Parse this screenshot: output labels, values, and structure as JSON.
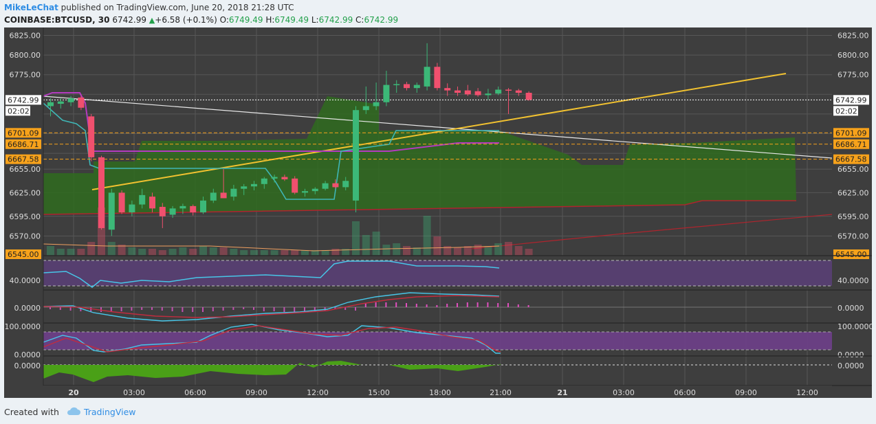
{
  "header": {
    "author": "MikeLeChat",
    "published_text": "published on TradingView.com, June 20, 2018 21:28 UTC",
    "symbol": "COINBASE:BTCUSD, 30",
    "last": "6742.99",
    "change_arrow": "▲",
    "change": "+6.58 (+0.1%)",
    "open_label": "O:",
    "open": "6749.49",
    "high_label": "H:",
    "high": "6749.49",
    "low_label": "L:",
    "low": "6742.99",
    "close_label": "C:",
    "close": "6742.99"
  },
  "price_axis": {
    "ticks": [
      "6825.00",
      "6800.00",
      "6775.00",
      "6655.00",
      "6625.00",
      "6595.00",
      "6570.00"
    ],
    "labels_left": [
      {
        "text": "6742.99",
        "kind": "last"
      },
      {
        "text": "02:02",
        "kind": "countdown"
      },
      {
        "text": "6701.09",
        "kind": "level"
      },
      {
        "text": "6686.71",
        "kind": "level"
      },
      {
        "text": "6667.58",
        "kind": "level"
      },
      {
        "text": "6545.00",
        "kind": "level"
      }
    ],
    "labels_right": [
      {
        "text": "6742.99",
        "kind": "last"
      },
      {
        "text": "02:02",
        "kind": "countdown"
      },
      {
        "text": "6701.09",
        "kind": "level"
      },
      {
        "text": "6686.71",
        "kind": "level"
      },
      {
        "text": "6667.58",
        "kind": "level"
      },
      {
        "text": "6545.00",
        "kind": "level"
      }
    ]
  },
  "indicator_axis": {
    "rsi_label": "40.0000",
    "macd_label": "0.0000",
    "stoch_top": "100.0000",
    "stoch_bottom": "0.0000",
    "osc_label": "0.0000",
    "rsi_left": "40.0000",
    "macd_left": "0.0000",
    "stoch_left_top": "100.0000",
    "stoch_left_bottom": "0.0000",
    "osc_left": "0.0000"
  },
  "time_axis": [
    "20",
    "03:00",
    "06:00",
    "09:00",
    "12:00",
    "15:00",
    "18:00",
    "21:00",
    "21",
    "03:00",
    "06:00",
    "09:00",
    "12:00"
  ],
  "time_axis_bold": [
    true,
    false,
    false,
    false,
    false,
    false,
    false,
    false,
    true,
    false,
    false,
    false,
    false
  ],
  "footer": {
    "created_with": "Created with",
    "brand": "TradingView"
  },
  "colors": {
    "up": "#3cb878",
    "down": "#f0506e",
    "level_line": "#f7a21b",
    "trend_yellow": "#f2c230",
    "cloud": "#2f6b1f",
    "rsi_band": "#5b3f78",
    "stoch_band": "#6e3f8a",
    "osc_fill": "#4aa017"
  },
  "chart_data": {
    "type": "candlestick",
    "symbol": "COINBASE:BTCUSD",
    "interval": "30",
    "ylim": [
      6545,
      6835
    ],
    "candles": [
      {
        "o": 6735,
        "h": 6745,
        "l": 6722,
        "c": 6740
      },
      {
        "o": 6738,
        "h": 6745,
        "l": 6732,
        "c": 6741
      },
      {
        "o": 6740,
        "h": 6748,
        "l": 6735,
        "c": 6745
      },
      {
        "o": 6746,
        "h": 6748,
        "l": 6730,
        "c": 6733
      },
      {
        "o": 6722,
        "h": 6725,
        "l": 6665,
        "c": 6670
      },
      {
        "o": 6670,
        "h": 6672,
        "l": 6578,
        "c": 6580
      },
      {
        "o": 6578,
        "h": 6630,
        "l": 6570,
        "c": 6625
      },
      {
        "o": 6625,
        "h": 6628,
        "l": 6598,
        "c": 6600
      },
      {
        "o": 6600,
        "h": 6615,
        "l": 6595,
        "c": 6610
      },
      {
        "o": 6610,
        "h": 6630,
        "l": 6605,
        "c": 6622
      },
      {
        "o": 6620,
        "h": 6625,
        "l": 6600,
        "c": 6605
      },
      {
        "o": 6607,
        "h": 6612,
        "l": 6580,
        "c": 6595
      },
      {
        "o": 6597,
        "h": 6608,
        "l": 6593,
        "c": 6605
      },
      {
        "o": 6605,
        "h": 6611,
        "l": 6598,
        "c": 6608
      },
      {
        "o": 6608,
        "h": 6610,
        "l": 6596,
        "c": 6600
      },
      {
        "o": 6600,
        "h": 6620,
        "l": 6598,
        "c": 6615
      },
      {
        "o": 6615,
        "h": 6630,
        "l": 6612,
        "c": 6625
      },
      {
        "o": 6625,
        "h": 6655,
        "l": 6620,
        "c": 6618
      },
      {
        "o": 6620,
        "h": 6635,
        "l": 6615,
        "c": 6630
      },
      {
        "o": 6630,
        "h": 6636,
        "l": 6622,
        "c": 6633
      },
      {
        "o": 6633,
        "h": 6640,
        "l": 6628,
        "c": 6636
      },
      {
        "o": 6636,
        "h": 6645,
        "l": 6630,
        "c": 6643
      },
      {
        "o": 6643,
        "h": 6648,
        "l": 6638,
        "c": 6645
      },
      {
        "o": 6645,
        "h": 6648,
        "l": 6640,
        "c": 6642
      },
      {
        "o": 6643,
        "h": 6646,
        "l": 6623,
        "c": 6625
      },
      {
        "o": 6625,
        "h": 6630,
        "l": 6620,
        "c": 6627
      },
      {
        "o": 6627,
        "h": 6632,
        "l": 6623,
        "c": 6630
      },
      {
        "o": 6630,
        "h": 6640,
        "l": 6628,
        "c": 6637
      },
      {
        "o": 6637,
        "h": 6642,
        "l": 6630,
        "c": 6632
      },
      {
        "o": 6632,
        "h": 6645,
        "l": 6628,
        "c": 6640
      },
      {
        "o": 6615,
        "h": 6735,
        "l": 6600,
        "c": 6730
      },
      {
        "o": 6730,
        "h": 6760,
        "l": 6725,
        "c": 6735
      },
      {
        "o": 6735,
        "h": 6765,
        "l": 6730,
        "c": 6740
      },
      {
        "o": 6740,
        "h": 6780,
        "l": 6735,
        "c": 6762
      },
      {
        "o": 6762,
        "h": 6768,
        "l": 6752,
        "c": 6763
      },
      {
        "o": 6763,
        "h": 6766,
        "l": 6755,
        "c": 6758
      },
      {
        "o": 6758,
        "h": 6765,
        "l": 6752,
        "c": 6762
      },
      {
        "o": 6760,
        "h": 6815,
        "l": 6755,
        "c": 6785
      },
      {
        "o": 6785,
        "h": 6790,
        "l": 6755,
        "c": 6758
      },
      {
        "o": 6758,
        "h": 6764,
        "l": 6748,
        "c": 6755
      },
      {
        "o": 6755,
        "h": 6760,
        "l": 6748,
        "c": 6752
      },
      {
        "o": 6755,
        "h": 6762,
        "l": 6748,
        "c": 6750
      },
      {
        "o": 6754,
        "h": 6758,
        "l": 6747,
        "c": 6749
      },
      {
        "o": 6749,
        "h": 6757,
        "l": 6743,
        "c": 6751
      },
      {
        "o": 6751,
        "h": 6760,
        "l": 6749,
        "c": 6756
      },
      {
        "o": 6756,
        "h": 6758,
        "l": 6725,
        "c": 6755
      },
      {
        "o": 6755,
        "h": 6757,
        "l": 6748,
        "c": 6752
      },
      {
        "o": 6752,
        "h": 6754,
        "l": 6742,
        "c": 6743
      }
    ],
    "levels": [
      6742.99,
      6701.09,
      6686.71,
      6667.58,
      6545.0
    ]
  }
}
